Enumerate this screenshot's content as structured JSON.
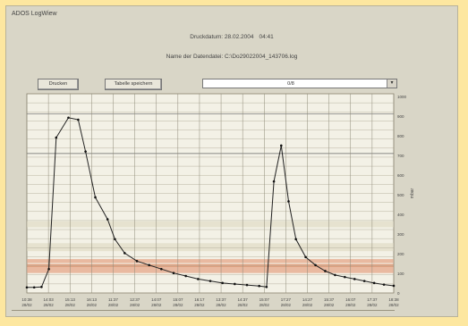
{
  "window": {
    "title": "ADOS LogWiew"
  },
  "header": {
    "line1_label": "Druckdatum: 28.02.2004",
    "line1_time": "04:41",
    "line2": "Name der Datendatei: C:\\Do29022004_143706.log"
  },
  "toolbar": {
    "print_label": "Drucken",
    "save_label": "Tabelle speichern",
    "combo_value": "0/8"
  },
  "chart_data": {
    "type": "line",
    "title": "",
    "ylabel": "mbar",
    "xlabel": "",
    "ylim": [
      0,
      1000
    ],
    "y_ticks": [
      "1000",
      "900",
      "800",
      "700",
      "600",
      "500",
      "400",
      "300",
      "200",
      "100",
      "0"
    ],
    "x_ticks": [
      [
        "10:38",
        "28/02"
      ],
      [
        "14:03",
        "28/02"
      ],
      [
        "15:13",
        "28/02"
      ],
      [
        "16:13",
        "28/02"
      ],
      [
        "11:37",
        "28/02"
      ],
      [
        "12:37",
        "28/02"
      ],
      [
        "14:07",
        "28/02"
      ],
      [
        "15:07",
        "28/02"
      ],
      [
        "16:17",
        "28/02"
      ],
      [
        "13:37",
        "28/02"
      ],
      [
        "14:37",
        "28/02"
      ],
      [
        "15:07",
        "28/02"
      ],
      [
        "17:27",
        "28/02"
      ],
      [
        "14:27",
        "28/02"
      ],
      [
        "15:37",
        "28/02"
      ],
      [
        "16:07",
        "28/02"
      ],
      [
        "17:37",
        "28/02"
      ],
      [
        "18:38",
        "28/02"
      ]
    ],
    "bands": [
      {
        "from": 100,
        "to": 130,
        "color": "#e9b9a0"
      },
      {
        "from": 130,
        "to": 145,
        "color": "#e0a080"
      },
      {
        "from": 150,
        "to": 170,
        "color": "#e9b9a0"
      },
      {
        "from": 210,
        "to": 250,
        "color": "#e6e2cf"
      },
      {
        "from": 330,
        "to": 360,
        "color": "#e6e2cf"
      }
    ],
    "series": [
      {
        "values": [
          [
            0,
            28
          ],
          [
            3,
            28
          ],
          [
            6,
            30
          ],
          [
            9,
            120
          ],
          [
            12,
            780
          ],
          [
            17,
            880
          ],
          [
            21,
            870
          ],
          [
            24,
            710
          ],
          [
            28,
            480
          ],
          [
            33,
            370
          ],
          [
            36,
            270
          ],
          [
            40,
            200
          ],
          [
            45,
            160
          ],
          [
            50,
            140
          ],
          [
            55,
            120
          ],
          [
            60,
            100
          ],
          [
            65,
            85
          ],
          [
            70,
            70
          ],
          [
            75,
            60
          ],
          [
            80,
            50
          ],
          [
            85,
            45
          ],
          [
            90,
            40
          ],
          [
            95,
            35
          ],
          [
            98,
            30
          ],
          [
            101,
            560
          ],
          [
            104,
            740
          ],
          [
            107,
            460
          ],
          [
            110,
            270
          ],
          [
            114,
            180
          ],
          [
            118,
            140
          ],
          [
            122,
            110
          ],
          [
            126,
            90
          ],
          [
            130,
            80
          ],
          [
            134,
            70
          ],
          [
            138,
            60
          ],
          [
            142,
            50
          ],
          [
            146,
            42
          ],
          [
            150,
            36
          ]
        ]
      }
    ]
  }
}
